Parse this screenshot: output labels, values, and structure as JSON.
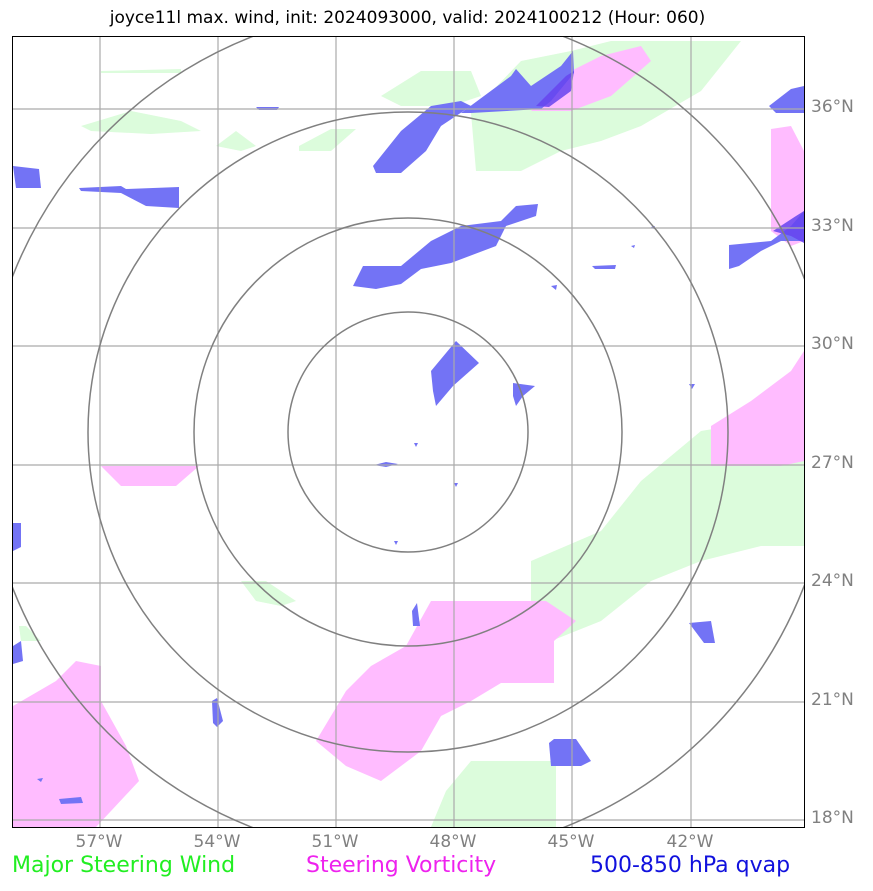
{
  "title": "joyce11l max. wind, init: 2024093000, valid: 2024100212 (Hour: 060)",
  "lat_labels": [
    "36°N",
    "33°N",
    "30°N",
    "27°N",
    "24°N",
    "21°N",
    "18°N"
  ],
  "lon_labels": [
    "57°W",
    "54°W",
    "51°W",
    "48°W",
    "45°W",
    "42°W"
  ],
  "legend": {
    "wind": "Major Steering Wind",
    "vorticity": "Steering Vorticity",
    "qvap": "500-850 hPa qvap"
  },
  "colors": {
    "wind": "#22ee22",
    "vorticity": "#ee22ee",
    "qvap": "#1111dd",
    "wind_fill": "#dcfcdc",
    "vorticity_fill": "#ffbcff",
    "qvap_fill": "#7373f5",
    "grid": "#aaaaaa",
    "range_rings": "#808080"
  }
}
